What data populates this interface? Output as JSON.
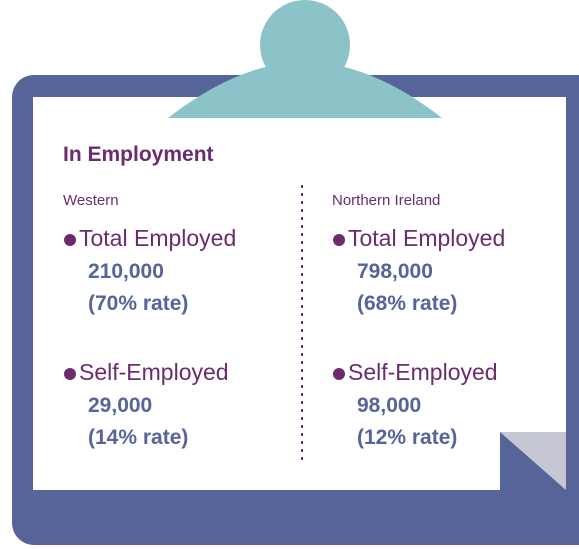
{
  "title": "In Employment",
  "columns": [
    {
      "region": "Western",
      "items": [
        {
          "label": "Total Employed",
          "value": "210,000",
          "rate": "(70% rate)"
        },
        {
          "label": "Self-Employed",
          "value": "29,000",
          "rate": "(14% rate)"
        }
      ]
    },
    {
      "region": "Northern Ireland",
      "items": [
        {
          "label": "Total Employed",
          "value": "798,000",
          "rate": "(68% rate)"
        },
        {
          "label": "Self-Employed",
          "value": "98,000",
          "rate": "(12% rate)"
        }
      ]
    }
  ]
}
